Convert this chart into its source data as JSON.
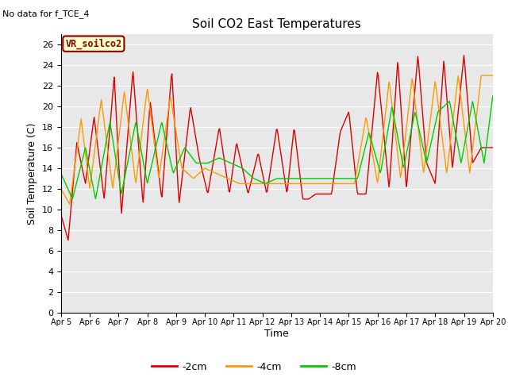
{
  "title": "Soil CO2 East Temperatures",
  "no_data_text": "No data for f_TCE_4",
  "vr_label": "VR_soilco2",
  "xlabel": "Time",
  "ylabel": "Soil Temperature (C)",
  "ylim": [
    0,
    27
  ],
  "yticks": [
    0,
    2,
    4,
    6,
    8,
    10,
    12,
    14,
    16,
    18,
    20,
    22,
    24,
    26
  ],
  "x_labels": [
    "Apr 5",
    "Apr 6",
    "Apr 7",
    "Apr 8",
    "Apr 9",
    "Apr 10",
    "Apr 11",
    "Apr 12",
    "Apr 13",
    "Apr 14",
    "Apr 15",
    "Apr 16",
    "Apr 17",
    "Apr 18",
    "Apr 19",
    "Apr 20"
  ],
  "color_2cm": "#dd0000",
  "color_4cm": "#ff9900",
  "color_8cm": "#00cc00",
  "legend_entries": [
    "-2cm",
    "-4cm",
    "-8cm"
  ],
  "fig_bg": "#ffffff",
  "plot_bg": "#e8e8e8",
  "grid_color": "#ffffff",
  "n_points": 600,
  "days": 15
}
